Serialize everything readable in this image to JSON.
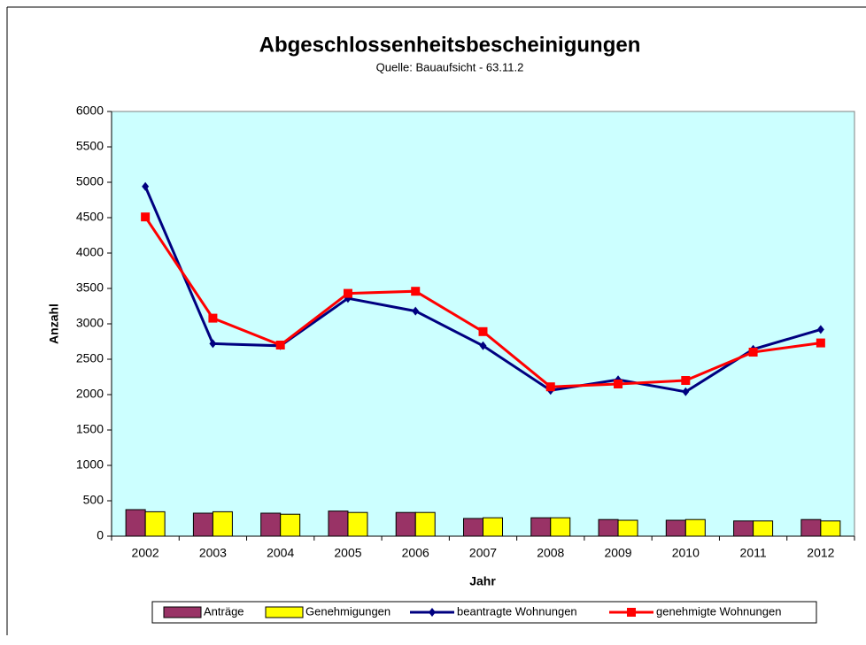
{
  "chart_data": {
    "type": "bar",
    "title": "Abgeschlossenheitsbescheinigungen",
    "subtitle": "Quelle:  Bauaufsicht  - 63.11.2",
    "x_label": "Jahr",
    "y_label": "Anzahl",
    "categories": [
      "2002",
      "2003",
      "2004",
      "2005",
      "2006",
      "2007",
      "2008",
      "2009",
      "2010",
      "2011",
      "2012"
    ],
    "series": [
      {
        "name": "Anträge",
        "type": "bar",
        "color": "#993366",
        "values": [
          375,
          325,
          325,
          355,
          335,
          250,
          260,
          235,
          225,
          215,
          235
        ]
      },
      {
        "name": "Genehmigungen",
        "type": "bar",
        "color": "#ffff00",
        "values": [
          345,
          345,
          310,
          335,
          335,
          260,
          260,
          225,
          235,
          215,
          215
        ]
      },
      {
        "name": "beantragte Wohnungen",
        "type": "line",
        "marker": "diamond",
        "color": "#000080",
        "values": [
          4940,
          2720,
          2690,
          3360,
          3180,
          2690,
          2060,
          2210,
          2040,
          2640,
          2920
        ]
      },
      {
        "name": "genehmigte Wohnungen",
        "type": "line",
        "marker": "square",
        "color": "#ff0000",
        "values": [
          4510,
          3080,
          2700,
          3430,
          3460,
          2890,
          2110,
          2150,
          2200,
          2600,
          2730
        ]
      }
    ],
    "ylim": [
      0,
      6000
    ],
    "yticks": [
      0,
      500,
      1000,
      1500,
      2000,
      2500,
      3000,
      3500,
      4000,
      4500,
      5000,
      5500,
      6000
    ],
    "plot_background": "#ccffff",
    "legend": "bottom"
  }
}
